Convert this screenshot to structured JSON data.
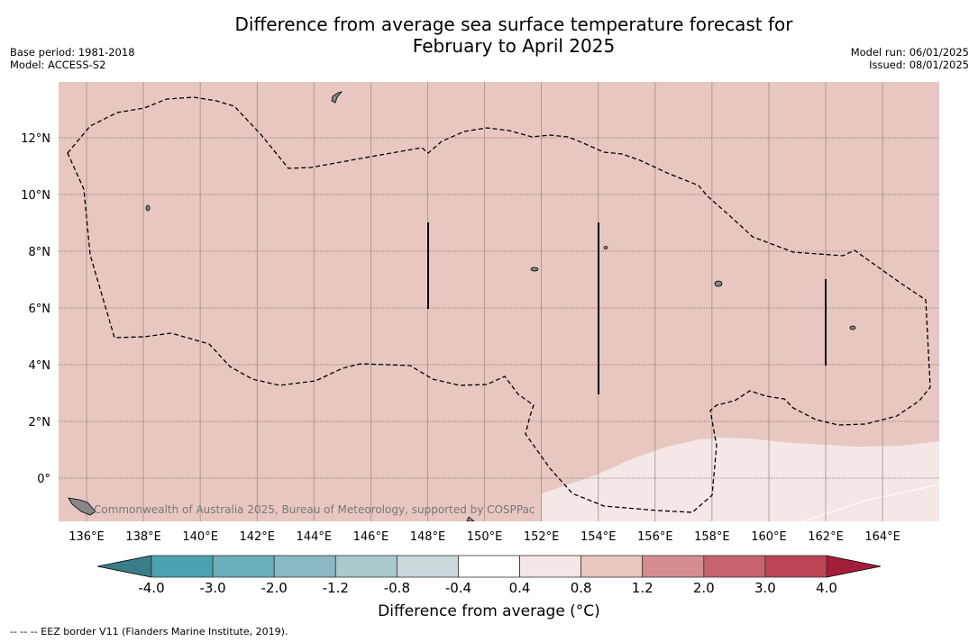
{
  "title_line1": "Difference from average sea surface temperature forecast for",
  "title_line2": "February to April 2025",
  "base_period": "Base period: 1981-2018",
  "model": "Model: ACCESS-S2",
  "model_run": "Model run: 06/01/2025",
  "issued": "Issued: 08/01/2025",
  "copyright": "Commonwealth of Australia 2025, Bureau of Meteorology, supported by COSPPac",
  "map": {
    "lon_ticks": [
      136,
      138,
      140,
      142,
      144,
      146,
      148,
      150,
      152,
      154,
      156,
      158,
      160,
      162,
      164
    ],
    "lon_labels": [
      "136°E",
      "138°E",
      "140°E",
      "142°E",
      "144°E",
      "146°E",
      "148°E",
      "150°E",
      "152°E",
      "154°E",
      "156°E",
      "158°E",
      "160°E",
      "162°E",
      "164°E"
    ],
    "lat_ticks": [
      0,
      2,
      4,
      6,
      8,
      10,
      12
    ],
    "lat_labels": [
      "0°",
      "2°N",
      "4°N",
      "6°N",
      "8°N",
      "10°N",
      "12°N"
    ],
    "colors": {
      "anomaly_0_4_0_8": "#f5e7e5",
      "anomaly_0_8_1_2": "#e8c7c2"
    }
  },
  "colorbar": {
    "labels": [
      "-4.0",
      "-3.0",
      "-2.0",
      "-1.2",
      "-0.8",
      "-0.4",
      "0.4",
      "0.8",
      "1.2",
      "2.0",
      "3.0",
      "4.0"
    ],
    "colors": [
      "#4aa2b1",
      "#6aaebb",
      "#8ab9c3",
      "#aac9cd",
      "#cad8da",
      "#ffffff",
      "#f5e7e5",
      "#e8c7c2",
      "#d58d93",
      "#c6636d",
      "#bc4555"
    ],
    "under_color": "#3a7d88",
    "over_color": "#a61c3b",
    "label": "Difference from average (°C)"
  },
  "footnote": "-- -- -- EEZ border V11 (Flanders Marine Institute, 2019)."
}
